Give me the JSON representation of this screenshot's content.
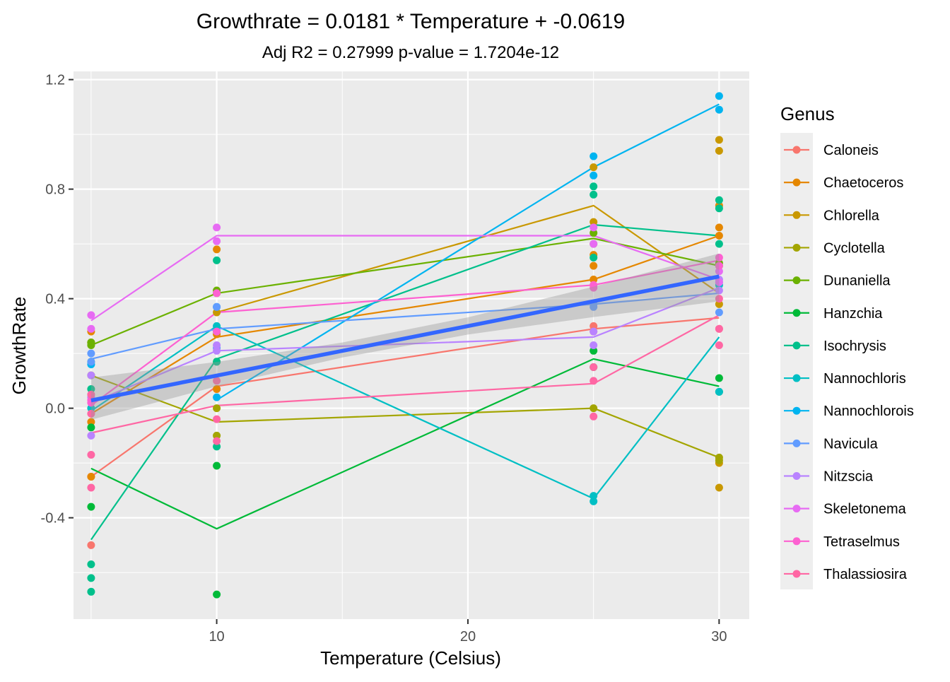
{
  "chart_data": {
    "type": "scatter",
    "title": "Growthrate = 0.0181 * Temperature + -0.0619",
    "subtitle": "Adj R2 =  0.27999  p-value = 1.7204e-12",
    "xlabel": "Temperature (Celsius)",
    "ylabel": "GrowthRate",
    "xlim": [
      4.3,
      31.2
    ],
    "ylim": [
      -0.77,
      1.23
    ],
    "x_ticks": [
      10,
      20,
      30
    ],
    "x_tick_labels": [
      "10",
      "20",
      "30"
    ],
    "y_ticks": [
      -0.4,
      0.0,
      0.4,
      0.8,
      1.2
    ],
    "y_tick_labels": [
      "-0.4",
      "0.0",
      "0.4",
      "0.8",
      "1.2"
    ],
    "grid": true,
    "legend": {
      "title": "Genus",
      "placement": "right"
    },
    "series": [
      {
        "name": "Caloneis",
        "color": "#F8766D",
        "points": [
          [
            5,
            -0.5
          ],
          [
            5,
            -0.25
          ],
          [
            10,
            0.07
          ],
          [
            25,
            0.3
          ],
          [
            25,
            0.28
          ],
          [
            30,
            0.29
          ]
        ],
        "means": [
          [
            5,
            -0.25
          ],
          [
            10,
            0.08
          ],
          [
            25,
            0.29
          ],
          [
            30,
            0.33
          ]
        ]
      },
      {
        "name": "Chaetoceros",
        "color": "#E58700",
        "points": [
          [
            5,
            -0.25
          ],
          [
            5,
            0.28
          ],
          [
            5,
            -0.05
          ],
          [
            10,
            0.07
          ],
          [
            10,
            0.58
          ],
          [
            10,
            0.27
          ],
          [
            25,
            0.52
          ],
          [
            25,
            0.56
          ],
          [
            25,
            0.47
          ],
          [
            30,
            0.63
          ],
          [
            30,
            0.66
          ],
          [
            30,
            0.74
          ]
        ],
        "means": [
          [
            5,
            -0.02
          ],
          [
            10,
            0.26
          ],
          [
            25,
            0.47
          ],
          [
            30,
            0.63
          ]
        ]
      },
      {
        "name": "Chlorella",
        "color": "#C99800",
        "points": [
          [
            5,
            0.24
          ],
          [
            10,
            0.35
          ],
          [
            10,
            0.17
          ],
          [
            25,
            0.88
          ],
          [
            25,
            0.68
          ],
          [
            30,
            0.98
          ],
          [
            30,
            0.94
          ],
          [
            30,
            0.38
          ],
          [
            30,
            -0.29
          ],
          [
            30,
            -0.2
          ]
        ],
        "means": [
          [
            10,
            0.35
          ],
          [
            25,
            0.74
          ],
          [
            30,
            0.42
          ]
        ]
      },
      {
        "name": "Cyclotella",
        "color": "#A3A500",
        "points": [
          [
            5,
            0.24
          ],
          [
            5,
            0.12
          ],
          [
            10,
            -0.1
          ],
          [
            10,
            0.0
          ],
          [
            25,
            0.0
          ],
          [
            30,
            -0.18
          ],
          [
            30,
            -0.19
          ]
        ],
        "means": [
          [
            5,
            0.12
          ],
          [
            10,
            -0.05
          ],
          [
            25,
            0.0
          ],
          [
            30,
            -0.18
          ]
        ]
      },
      {
        "name": "Dunaniella",
        "color": "#6BB100",
        "points": [
          [
            5,
            0.24
          ],
          [
            5,
            0.23
          ],
          [
            10,
            0.43
          ],
          [
            10,
            0.42
          ],
          [
            25,
            0.64
          ],
          [
            25,
            0.6
          ],
          [
            30,
            0.53
          ],
          [
            30,
            0.52
          ]
        ],
        "means": [
          [
            5,
            0.23
          ],
          [
            10,
            0.42
          ],
          [
            25,
            0.62
          ],
          [
            30,
            0.52
          ]
        ]
      },
      {
        "name": "Hanzchia",
        "color": "#00BA38",
        "points": [
          [
            5,
            -0.07
          ],
          [
            5,
            -0.36
          ],
          [
            10,
            -0.21
          ],
          [
            10,
            -0.68
          ],
          [
            25,
            0.21
          ],
          [
            25,
            0.15
          ],
          [
            30,
            0.11
          ],
          [
            30,
            0.06
          ]
        ],
        "means": [
          [
            5,
            -0.22
          ],
          [
            10,
            -0.44
          ],
          [
            25,
            0.18
          ],
          [
            30,
            0.08
          ]
        ]
      },
      {
        "name": "Isochrysis",
        "color": "#00C08B",
        "points": [
          [
            5,
            -0.57
          ],
          [
            5,
            -0.62
          ],
          [
            5,
            -0.67
          ],
          [
            5,
            0.17
          ],
          [
            5,
            0.07
          ],
          [
            10,
            0.17
          ],
          [
            10,
            -0.14
          ],
          [
            10,
            0.54
          ],
          [
            25,
            0.81
          ],
          [
            25,
            0.78
          ],
          [
            25,
            0.55
          ],
          [
            30,
            0.76
          ],
          [
            30,
            0.73
          ],
          [
            30,
            0.6
          ]
        ],
        "means": [
          [
            5,
            -0.48
          ],
          [
            10,
            0.18
          ],
          [
            25,
            0.67
          ],
          [
            30,
            0.63
          ]
        ]
      },
      {
        "name": "Nannochloris",
        "color": "#00BFC4",
        "points": [
          [
            5,
            0.0
          ],
          [
            10,
            0.28
          ],
          [
            10,
            0.3
          ],
          [
            25,
            -0.32
          ],
          [
            25,
            -0.34
          ],
          [
            30,
            0.06
          ],
          [
            30,
            0.45
          ]
        ],
        "means": [
          [
            5,
            -0.01
          ],
          [
            10,
            0.3
          ],
          [
            25,
            -0.33
          ],
          [
            30,
            0.26
          ]
        ]
      },
      {
        "name": "Nannochlorois",
        "color": "#00B4F0",
        "points": [
          [
            5,
            0.16
          ],
          [
            10,
            0.04
          ],
          [
            10,
            0.37
          ],
          [
            25,
            0.92
          ],
          [
            25,
            0.85
          ],
          [
            30,
            1.14
          ],
          [
            30,
            1.09
          ]
        ],
        "means": [
          [
            10,
            0.03
          ],
          [
            25,
            0.88
          ],
          [
            30,
            1.11
          ]
        ]
      },
      {
        "name": "Navicula",
        "color": "#619CFF",
        "points": [
          [
            5,
            0.2
          ],
          [
            5,
            0.17
          ],
          [
            10,
            0.37
          ],
          [
            10,
            0.22
          ],
          [
            25,
            0.38
          ],
          [
            25,
            0.37
          ],
          [
            30,
            0.35
          ],
          [
            30,
            0.46
          ]
        ],
        "means": [
          [
            5,
            0.18
          ],
          [
            10,
            0.29
          ],
          [
            25,
            0.38
          ],
          [
            30,
            0.42
          ]
        ]
      },
      {
        "name": "Nitzscia",
        "color": "#B983FF",
        "points": [
          [
            5,
            -0.1
          ],
          [
            5,
            0.12
          ],
          [
            5,
            0.04
          ],
          [
            10,
            0.21
          ],
          [
            10,
            0.23
          ],
          [
            25,
            0.23
          ],
          [
            25,
            0.28
          ],
          [
            30,
            0.43
          ],
          [
            30,
            0.47
          ]
        ],
        "means": [
          [
            5,
            0.02
          ],
          [
            10,
            0.21
          ],
          [
            25,
            0.26
          ],
          [
            30,
            0.44
          ]
        ]
      },
      {
        "name": "Skeletonema",
        "color": "#E76BF3",
        "points": [
          [
            5,
            0.34
          ],
          [
            5,
            0.29
          ],
          [
            10,
            0.66
          ],
          [
            10,
            0.61
          ],
          [
            25,
            0.66
          ],
          [
            25,
            0.6
          ],
          [
            30,
            0.5
          ],
          [
            30,
            0.46
          ]
        ],
        "means": [
          [
            5,
            0.32
          ],
          [
            10,
            0.63
          ],
          [
            25,
            0.63
          ],
          [
            30,
            0.47
          ]
        ]
      },
      {
        "name": "Tetraselmus",
        "color": "#FD61D1",
        "points": [
          [
            5,
            0.03
          ],
          [
            5,
            0.02
          ],
          [
            10,
            0.42
          ],
          [
            10,
            0.28
          ],
          [
            25,
            0.45
          ],
          [
            25,
            0.44
          ],
          [
            30,
            0.55
          ],
          [
            30,
            0.52
          ]
        ],
        "means": [
          [
            5,
            0.01
          ],
          [
            10,
            0.35
          ],
          [
            25,
            0.45
          ],
          [
            30,
            0.54
          ]
        ]
      },
      {
        "name": "Thalassiosira",
        "color": "#FF67A4",
        "points": [
          [
            5,
            -0.17
          ],
          [
            5,
            -0.29
          ],
          [
            5,
            0.05
          ],
          [
            5,
            -0.02
          ],
          [
            10,
            -0.04
          ],
          [
            10,
            -0.12
          ],
          [
            10,
            0.1
          ],
          [
            25,
            0.15
          ],
          [
            25,
            0.1
          ],
          [
            25,
            -0.03
          ],
          [
            30,
            0.29
          ],
          [
            30,
            0.23
          ],
          [
            30,
            0.4
          ]
        ],
        "means": [
          [
            5,
            -0.09
          ],
          [
            10,
            0.01
          ],
          [
            25,
            0.09
          ],
          [
            30,
            0.34
          ]
        ]
      }
    ],
    "regression": {
      "slope": 0.0181,
      "intercept": -0.0619,
      "color": "#3366FF",
      "band_color": "#999999",
      "confidence_band": [
        [
          5,
          -0.042,
          0.112
        ],
        [
          10,
          0.08,
          0.169
        ],
        [
          15,
          0.185,
          0.24
        ],
        [
          20,
          0.269,
          0.332
        ],
        [
          25,
          0.333,
          0.444
        ],
        [
          30,
          0.39,
          0.565
        ]
      ]
    }
  }
}
